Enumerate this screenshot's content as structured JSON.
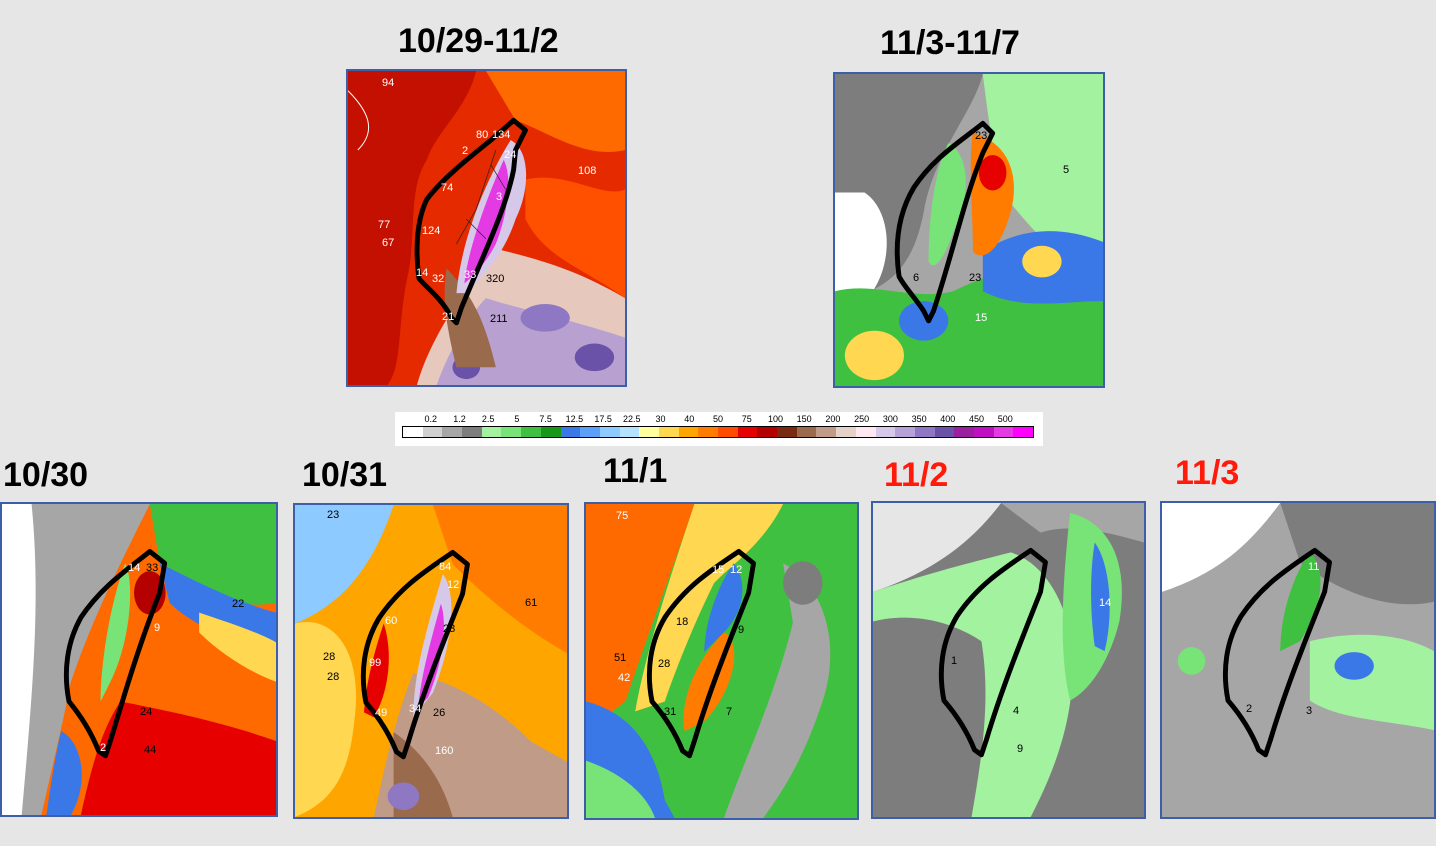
{
  "panels": {
    "p1": {
      "title": "10/29-11/2",
      "title_color": "#000000"
    },
    "p2": {
      "title": "11/3-11/7",
      "title_color": "#000000"
    },
    "p3": {
      "title": "10/30",
      "title_color": "#000000"
    },
    "p4": {
      "title": "10/31",
      "title_color": "#000000"
    },
    "p5": {
      "title": "11/1",
      "title_color": "#000000"
    },
    "p6": {
      "title": "11/2",
      "title_color": "#ff1a0a"
    },
    "p7": {
      "title": "11/3",
      "title_color": "#ff1a0a"
    }
  },
  "map_values": {
    "p1": [
      "94",
      "80",
      "134",
      "24",
      "2",
      "74",
      "108",
      "3",
      "77",
      "124",
      "67",
      "14",
      "32",
      "33",
      "320",
      "21",
      "211"
    ],
    "p2": [
      "23",
      "5",
      "23",
      "6",
      "15"
    ],
    "p3": [
      "14",
      "33",
      "22",
      "9",
      "24",
      "2",
      "44"
    ],
    "p4": [
      "23",
      "84",
      "12",
      "60",
      "23",
      "61",
      "28",
      "99",
      "28",
      "49",
      "34",
      "26",
      "160"
    ],
    "p5": [
      "75",
      "15",
      "12",
      "18",
      "9",
      "28",
      "51",
      "42",
      "31",
      "7"
    ],
    "p6": [
      "14",
      "1",
      "4",
      "9"
    ],
    "p7": [
      "11",
      "2",
      "3"
    ]
  },
  "legend": {
    "ticks": [
      "0.2",
      "1.2",
      "2.5",
      "5",
      "7.5",
      "12.5",
      "17.5",
      "22.5",
      "30",
      "40",
      "50",
      "75",
      "100",
      "150",
      "200",
      "250",
      "300",
      "350",
      "400",
      "450",
      "500"
    ],
    "colors": [
      "#ffffff",
      "#d0d0d0",
      "#a6a6a6",
      "#7d7d7d",
      "#a2f2a0",
      "#78e478",
      "#40c040",
      "#189818",
      "#3a78e8",
      "#5aa0f8",
      "#8ccaff",
      "#b4e2ff",
      "#ffffa0",
      "#ffd750",
      "#ffa500",
      "#ff7c00",
      "#ff4c00",
      "#e60000",
      "#b40000",
      "#7a2a10",
      "#9a6a4c",
      "#c09c88",
      "#e4d2c8",
      "#ffe8f0",
      "#d6c8e8",
      "#b4a2d8",
      "#8e78c4",
      "#6a52a8",
      "#9a20a0",
      "#c010c4",
      "#e43ae4",
      "#ff00ff"
    ]
  },
  "colors": {
    "panel_border": "#3d5fa8",
    "background": "#e6e6e6"
  }
}
